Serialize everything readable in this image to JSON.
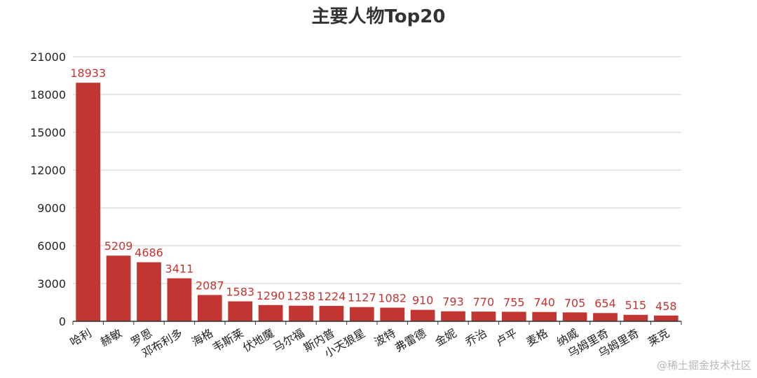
{
  "chart_data": {
    "type": "bar",
    "title": "主要人物Top20",
    "categories": [
      "哈利",
      "赫敏",
      "罗恩",
      "邓布利多",
      "海格",
      "韦斯莱",
      "伏地魔",
      "马尔福",
      "斯内普",
      "小天狼星",
      "波特",
      "弗雷德",
      "金妮",
      "乔治",
      "卢平",
      "麦格",
      "纳威",
      "乌姆里奇",
      "乌姆里奇",
      "莱克"
    ],
    "values": [
      18933,
      5209,
      4686,
      3411,
      2087,
      1583,
      1290,
      1238,
      1224,
      1127,
      1082,
      910,
      793,
      770,
      755,
      740,
      705,
      654,
      515,
      458
    ],
    "ylim": [
      0,
      21000
    ],
    "yticks": [
      0,
      3000,
      6000,
      9000,
      12000,
      15000,
      18000,
      21000
    ],
    "xlabel": "",
    "ylabel": "",
    "grid": true,
    "colors": {
      "bar": "#c23531",
      "label": "#c23531",
      "grid": "#cccccc",
      "axis": "#333333"
    }
  },
  "watermark": "@稀土掘金技术社区"
}
